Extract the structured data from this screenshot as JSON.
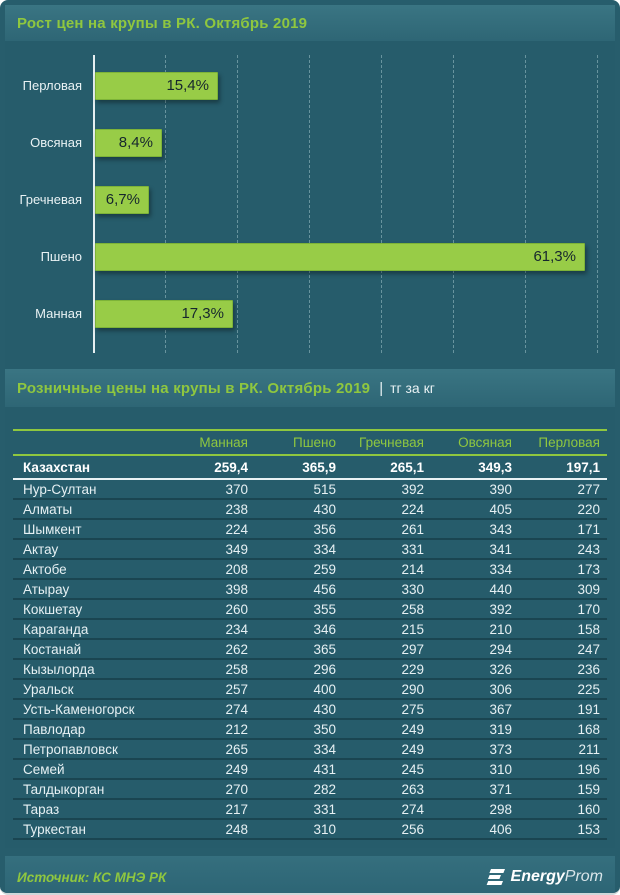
{
  "chart_section": {
    "title": "Рост цен на крупы в РК. Октябрь 2019"
  },
  "table_section": {
    "title": "Розничные цены на крупы в РК. Октябрь 2019",
    "units_separator": "|",
    "units": "тг за кг"
  },
  "chart_data": [
    {
      "type": "bar",
      "orientation": "horizontal",
      "title": "Рост цен на крупы в РК. Октябрь 2019",
      "categories": [
        "Перловая",
        "Овсяная",
        "Гречневая",
        "Пшено",
        "Манная"
      ],
      "values": [
        15.4,
        8.4,
        6.7,
        61.3,
        17.3
      ],
      "value_labels": [
        "15,4%",
        "8,4%",
        "6,7%",
        "61,3%",
        "17,3%"
      ],
      "unit": "%",
      "xlim": [
        0,
        65
      ],
      "grid": "vertical-dashed",
      "tick_labels_visible": false,
      "bar_color": "#98CC47",
      "value_label_color": "#16262E"
    },
    {
      "type": "table",
      "title": "Розничные цены на крупы в РК. Октябрь 2019 (тг за кг)",
      "columns": [
        "",
        "Манная",
        "Пшено",
        "Гречневая",
        "Овсяная",
        "Перловая"
      ],
      "summary_row": [
        "Казахстан",
        "259,4",
        "365,9",
        "265,1",
        "349,3",
        "197,1"
      ],
      "rows": [
        [
          "Нур-Султан",
          "370",
          "515",
          "392",
          "390",
          "277"
        ],
        [
          "Алматы",
          "238",
          "430",
          "224",
          "405",
          "220"
        ],
        [
          "Шымкент",
          "224",
          "356",
          "261",
          "343",
          "171"
        ],
        [
          "Актау",
          "349",
          "334",
          "331",
          "341",
          "243"
        ],
        [
          "Актобе",
          "208",
          "259",
          "214",
          "334",
          "173"
        ],
        [
          "Атырау",
          "398",
          "456",
          "330",
          "440",
          "309"
        ],
        [
          "Кокшетау",
          "260",
          "355",
          "258",
          "392",
          "170"
        ],
        [
          "Караганда",
          "234",
          "346",
          "215",
          "210",
          "158"
        ],
        [
          "Костанай",
          "262",
          "365",
          "297",
          "294",
          "247"
        ],
        [
          "Кызылорда",
          "258",
          "296",
          "229",
          "326",
          "236"
        ],
        [
          "Уральск",
          "257",
          "400",
          "290",
          "306",
          "225"
        ],
        [
          "Усть-Каменогорск",
          "274",
          "430",
          "275",
          "367",
          "191"
        ],
        [
          "Павлодар",
          "212",
          "350",
          "249",
          "319",
          "168"
        ],
        [
          "Петропавловск",
          "265",
          "334",
          "249",
          "373",
          "211"
        ],
        [
          "Семей",
          "249",
          "431",
          "245",
          "310",
          "196"
        ],
        [
          "Талдыкорган",
          "270",
          "282",
          "263",
          "371",
          "159"
        ],
        [
          "Тараз",
          "217",
          "331",
          "274",
          "298",
          "160"
        ],
        [
          "Туркестан",
          "248",
          "310",
          "256",
          "406",
          "153"
        ]
      ]
    }
  ],
  "footer": {
    "source": "Источник: КС МНЭ РК",
    "logo_bold": "Energy",
    "logo_light": "Prom"
  },
  "colors": {
    "accent_green": "#8FC73F",
    "bar_green": "#98CC47",
    "band_teal": "#316E7D",
    "background_teal": "#275D6C"
  }
}
